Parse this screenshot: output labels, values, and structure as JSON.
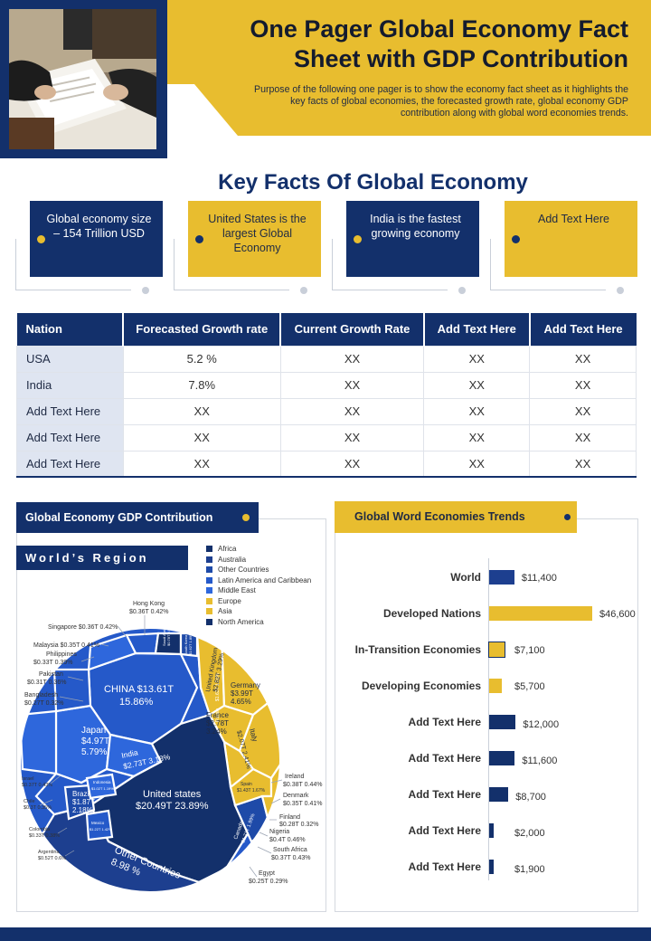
{
  "header": {
    "title_line1": "One Pager Global Economy Fact",
    "title_line2": "Sheet with GDP Contribution",
    "subtitle": "Purpose of the following one pager is to show the economy fact sheet as it highlights the key facts of global economies, the forecasted growth rate, global economy GDP contribution  along with global word economies trends."
  },
  "key_facts": {
    "title": "Key Facts Of Global Economy",
    "cards": [
      {
        "text": "Global economy size – 154 Trillion USD",
        "style": "navy"
      },
      {
        "text": "United States is the largest Global Economy",
        "style": "gold"
      },
      {
        "text": "India is the fastest growing economy",
        "style": "navy"
      },
      {
        "text": "Add Text Here",
        "style": "gold"
      }
    ]
  },
  "table": {
    "headers": [
      "Nation",
      "Forecasted Growth rate",
      "Current Growth Rate",
      "Add Text Here",
      "Add Text Here"
    ],
    "rows": [
      [
        "USA",
        "5.2 %",
        "XX",
        "XX",
        "XX"
      ],
      [
        "India",
        "7.8%",
        "XX",
        "XX",
        "XX"
      ],
      [
        "Add Text Here",
        "XX",
        "XX",
        "XX",
        "XX"
      ],
      [
        "Add Text Here",
        "XX",
        "XX",
        "XX",
        "XX"
      ],
      [
        "Add Text Here",
        "XX",
        "XX",
        "XX",
        "XX"
      ]
    ]
  },
  "gdp_panel": {
    "tab_title": "Global Economy GDP Contribution",
    "region_label": "World’s Region",
    "legend": [
      {
        "name": "Africa",
        "color": "#13306b"
      },
      {
        "name": "Australia",
        "color": "#1d3f8f"
      },
      {
        "name": "Other Countries",
        "color": "#1e4aa8"
      },
      {
        "name": "Latin America and Caribbean",
        "color": "#2559c9"
      },
      {
        "name": "Middle East",
        "color": "#2e67dc"
      },
      {
        "name": "Europe",
        "color": "#e8bd2f"
      },
      {
        "name": "Asia",
        "color": "#e8bd2f"
      },
      {
        "name": "North America",
        "color": "#13306b"
      }
    ],
    "inner_labels": {
      "china": "CHINA  $13.61T",
      "china_pct": "15.86%",
      "japan": "Japan",
      "japan_val": "$4.97T",
      "japan_pct": "5.79%",
      "india": "India",
      "india_val": "$2.73T 3.18%",
      "us": "United states",
      "us_val": "$20.49T 23.89%",
      "other": "Other Countries",
      "other_pct": "8.98 %",
      "brazil": "Brazil",
      "brazil_val": "$1.87T",
      "brazil_pct": "2.18%",
      "uk": "United Kingdom",
      "uk_val": "$2.82T 3.29%",
      "germany": "Germany",
      "germany_val": "$3.99T",
      "germany_pct": "4.65%",
      "france": "France",
      "france_val": "$2.78T",
      "france_pct": "3.24%",
      "italy": "Italy",
      "italy_val": "$2.07T 2.41%",
      "russia": "Russia",
      "russia_val": "$1.63T 1.90%",
      "canada": "Canada",
      "canada_val": "$1.71T 1.99%",
      "australia": "Australia",
      "australia_val": "$1.43T 1.67%",
      "indonesia": "Indonesia",
      "indonesia_val": "$1.02T 1.19%",
      "mexico": "Mexico",
      "mexico_val": "$1.22T 1.42%",
      "south_korea": "South Korea",
      "south_korea_val": "$1.62T 1.89%",
      "spain": "Spain",
      "spain_val": "$1.43T 1.67%",
      "saudi": "Saudi Arabia",
      "saudi_val": "$0.78T 0.91%"
    },
    "outer_labels": {
      "hong_kong": "Hong Kong",
      "hong_kong_val": "$0.36T 0.42%",
      "singapore": "Singapore $0.36T 0.42%",
      "malaysia": "Malaysia $0.35T 0.41%",
      "philippines": "Philippines",
      "philippines_val": "$0.33T 0.39%",
      "pakistan": "Pakistan",
      "pakistan_val": "$0.31T 0.36%",
      "bangladesh": "Bangladesh",
      "bangladesh_val": "$0.27T 0.32%",
      "israel": "Israel",
      "israel_val": "$0.37T 0.43%",
      "chile": "Chile",
      "chile_val": "$0.3T 0.35%",
      "colombia": "Colombia",
      "colombia_val": "$0.33T 0.38%",
      "argentina": "Argentina",
      "argentina_val": "$0.52T 0.6%",
      "ireland": "Ireland",
      "ireland_val": "$0.38T 0.44%",
      "denmark": "Denmark",
      "denmark_val": "$0.35T 0.41%",
      "finland": "Finland",
      "finland_val": "$0.28T 0.32%",
      "nigeria": "Nigeria",
      "nigeria_val": "$0.4T 0.46%",
      "south_africa": "South Africa",
      "south_africa_val": "$0.37T 0.43%",
      "egypt": "Egypt",
      "egypt_val": "$0.25T 0.29%"
    }
  },
  "trends_panel": {
    "tab_title": "Global Word Economies Trends"
  },
  "chart_data": {
    "type": "bar",
    "orientation": "horizontal",
    "title": "Global Word Economies Trends",
    "categories": [
      "World",
      "Developed Nations",
      "In-Transition Economies",
      "Developing Economies",
      "Add Text Here",
      "Add Text Here",
      "Add Text Here",
      "Add Text Here",
      "Add Text Here"
    ],
    "values": [
      11400,
      46600,
      7100,
      5700,
      12000,
      11600,
      8700,
      2000,
      1900
    ],
    "value_labels": [
      "$11,400",
      "$46,600",
      "$7,100",
      "$5,700",
      "$12,000",
      "$11,600",
      "$8,700",
      "$2,000",
      "$1,900"
    ],
    "bar_colors": [
      "#1d3f8f",
      "#e8bd2f",
      "#e8bd2f",
      "#e8bd2f",
      "#13306b",
      "#13306b",
      "#13306b",
      "#13306b",
      "#13306b"
    ],
    "xlim": [
      0,
      46600
    ],
    "grid": false
  }
}
